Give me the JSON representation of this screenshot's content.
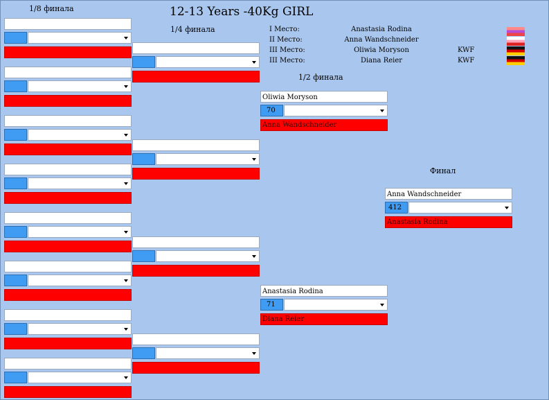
{
  "title": "12-13 Years -40Kg GIRL",
  "rounds": {
    "r16": "1/8 финала",
    "qf": "1/4 финала",
    "sf": "1/2 финала",
    "final": "Финал"
  },
  "podium": [
    {
      "place": "I Место:",
      "name": "Anastasia Rodina",
      "club": ""
    },
    {
      "place": "II Место:",
      "name": "Anna Wandschneider",
      "club": ""
    },
    {
      "place": "III Место:",
      "name": "Oliwia Moryson",
      "club": "KWF"
    },
    {
      "place": "III Место:",
      "name": "Diana Reier",
      "club": "KWF"
    }
  ],
  "flags": [
    "flag-russia",
    "flag-russia",
    "flag-germany",
    "flag-germany"
  ],
  "colors": {
    "background": "#a9c7ee",
    "score_box": "#3f9cf2",
    "loser_slot": "#ff0000"
  },
  "r16_matches": [
    {
      "top": "",
      "score": "",
      "bottom": ""
    },
    {
      "top": "",
      "score": "",
      "bottom": ""
    },
    {
      "top": "",
      "score": "",
      "bottom": ""
    },
    {
      "top": "",
      "score": "",
      "bottom": ""
    },
    {
      "top": "",
      "score": "",
      "bottom": ""
    },
    {
      "top": "",
      "score": "",
      "bottom": ""
    },
    {
      "top": "",
      "score": "",
      "bottom": ""
    },
    {
      "top": "",
      "score": "",
      "bottom": ""
    }
  ],
  "qf_matches": [
    {
      "top": "",
      "score": "",
      "bottom": ""
    },
    {
      "top": "",
      "score": "",
      "bottom": ""
    },
    {
      "top": "",
      "score": "",
      "bottom": ""
    },
    {
      "top": "",
      "score": "",
      "bottom": ""
    }
  ],
  "sf_matches": [
    {
      "top": "Oliwia Moryson",
      "score": "70",
      "bottom": "Anna Wandschneider"
    },
    {
      "top": "Anastasia Rodina",
      "score": "71",
      "bottom": "Diana Reier"
    }
  ],
  "final_match": {
    "top": "Anna Wandschneider",
    "score": "412",
    "bottom": "Anastasia Rodina"
  }
}
